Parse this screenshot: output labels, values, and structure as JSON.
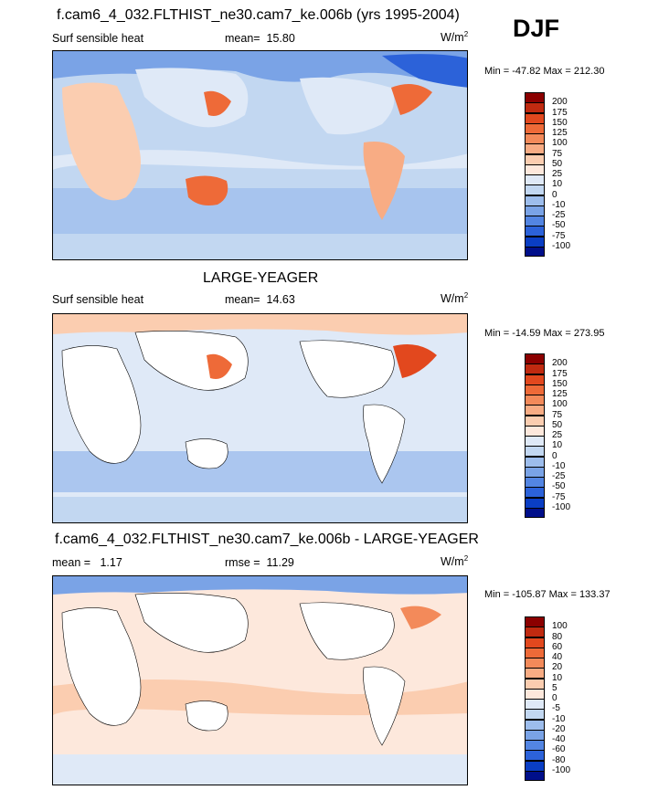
{
  "season": "DJF",
  "panels": [
    {
      "title": "f.cam6_4_032.FLTHIST_ne30.cam7_ke.006b (yrs 1995-2004)",
      "variable": "Surf sensible heat",
      "stat_label": "mean=",
      "stat_value": "15.80",
      "units": "W/m",
      "units_exp": "2",
      "minmax": "Min = -47.82 Max = 212.30",
      "levels": [
        "200",
        "175",
        "150",
        "125",
        "100",
        "75",
        "50",
        "25",
        "10",
        "0",
        "-10",
        "-25",
        "-50",
        "-75",
        "-100"
      ],
      "colors": [
        "#8b0000",
        "#c02a10",
        "#e2481e",
        "#ee6a38",
        "#f38a5a",
        "#f8ac84",
        "#fbcdb0",
        "#fde8dc",
        "#dfe9f7",
        "#c2d7f1",
        "#9dbdec",
        "#7aa3e6",
        "#5385e2",
        "#2c62d9",
        "#0a3ec4",
        "#000f8a"
      ]
    },
    {
      "title": "LARGE-YEAGER",
      "variable": "Surf sensible heat",
      "stat_label": "mean=",
      "stat_value": "14.63",
      "units": "W/m",
      "units_exp": "2",
      "minmax": "Min = -14.59 Max = 273.95",
      "levels": [
        "200",
        "175",
        "150",
        "125",
        "100",
        "75",
        "50",
        "25",
        "10",
        "0",
        "-10",
        "-25",
        "-50",
        "-75",
        "-100"
      ],
      "colors": [
        "#8b0000",
        "#c02a10",
        "#e2481e",
        "#ee6a38",
        "#f38a5a",
        "#f8ac84",
        "#fbcdb0",
        "#fde8dc",
        "#dfe9f7",
        "#c2d7f1",
        "#9dbdec",
        "#7aa3e6",
        "#5385e2",
        "#2c62d9",
        "#0a3ec4",
        "#000f8a"
      ]
    },
    {
      "title": "f.cam6_4_032.FLTHIST_ne30.cam7_ke.006b - LARGE-YEAGER",
      "variable": "mean =",
      "variable_value": "1.17",
      "stat_label": "rmse =",
      "stat_value": "11.29",
      "units": "W/m",
      "units_exp": "2",
      "minmax": "Min = -105.87 Max = 133.37",
      "levels": [
        "100",
        "80",
        "60",
        "40",
        "20",
        "10",
        "5",
        "0",
        "-5",
        "-10",
        "-20",
        "-40",
        "-60",
        "-80",
        "-100"
      ],
      "colors": [
        "#8b0000",
        "#c02a10",
        "#e2481e",
        "#ee6a38",
        "#f38a5a",
        "#f8ac84",
        "#fbcdb0",
        "#fde8dc",
        "#dfe9f7",
        "#c2d7f1",
        "#9dbdec",
        "#7aa3e6",
        "#5385e2",
        "#2c62d9",
        "#0a3ec4",
        "#000f8a"
      ]
    }
  ],
  "chart_data": [
    {
      "type": "heatmap",
      "title": "f.cam6_4_032.FLTHIST_ne30.cam7_ke.006b (yrs 1995-2004)",
      "subtitle": "Surf sensible heat",
      "mean": 15.8,
      "min": -47.82,
      "max": 212.3,
      "units": "W/m2",
      "contour_levels": [
        -100,
        -75,
        -50,
        -25,
        -10,
        0,
        10,
        25,
        50,
        75,
        100,
        125,
        150,
        175,
        200
      ]
    },
    {
      "type": "heatmap",
      "title": "LARGE-YEAGER",
      "subtitle": "Surf sensible heat",
      "mean": 14.63,
      "min": -14.59,
      "max": 273.95,
      "units": "W/m2",
      "contour_levels": [
        -100,
        -75,
        -50,
        -25,
        -10,
        0,
        10,
        25,
        50,
        75,
        100,
        125,
        150,
        175,
        200
      ]
    },
    {
      "type": "heatmap",
      "title": "f.cam6_4_032.FLTHIST_ne30.cam7_ke.006b - LARGE-YEAGER",
      "mean": 1.17,
      "rmse": 11.29,
      "min": -105.87,
      "max": 133.37,
      "units": "W/m2",
      "contour_levels": [
        -100,
        -80,
        -60,
        -40,
        -20,
        -10,
        -5,
        0,
        5,
        10,
        20,
        40,
        60,
        80,
        100
      ]
    }
  ]
}
